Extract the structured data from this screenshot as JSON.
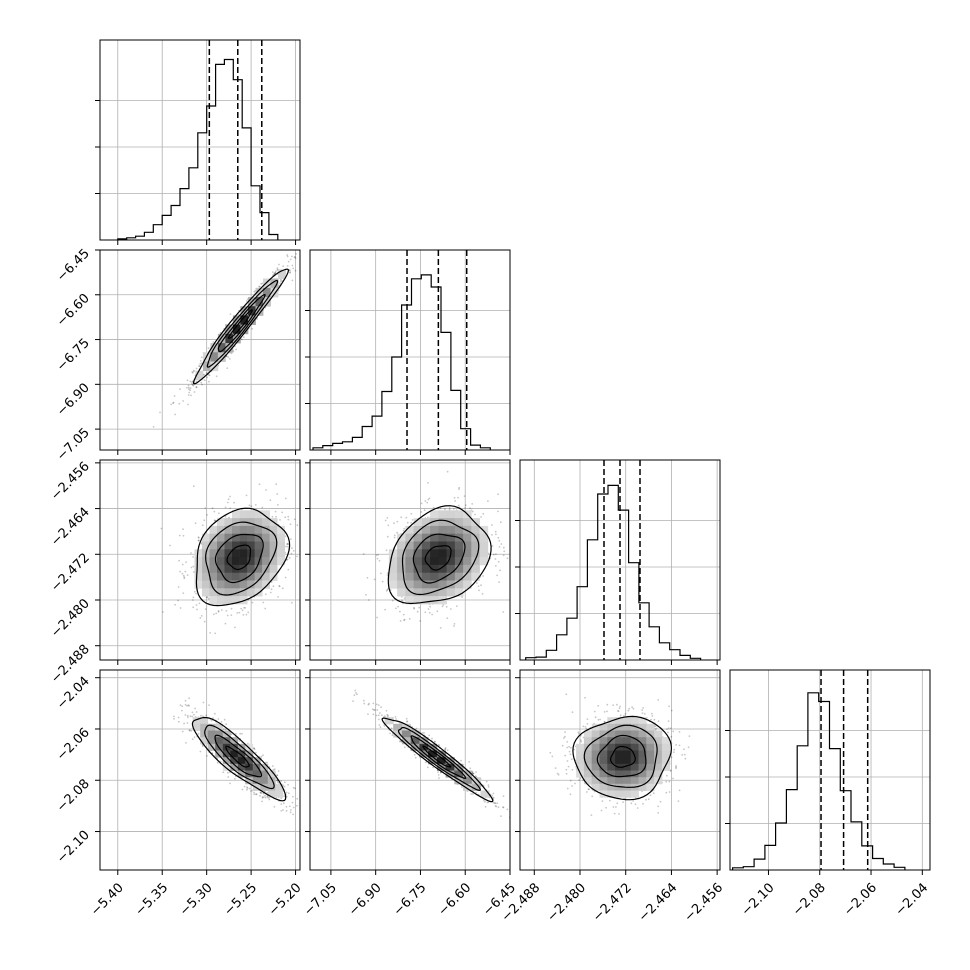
{
  "chart_data": {
    "type": "corner",
    "grid": true,
    "parameters": [
      {
        "range": [
          -5.42,
          -5.195
        ],
        "ticks": [
          -5.4,
          -5.35,
          -5.3,
          -5.25,
          -5.2
        ],
        "tick_labels": [
          "−5.40",
          "−5.35",
          "−5.30",
          "−5.25",
          "−5.20"
        ],
        "quantiles": [
          -5.297,
          -5.265,
          -5.238
        ],
        "histogram": {
          "bin_start": -5.4,
          "bin_width": 0.01,
          "counts": [
            2,
            4,
            7,
            14,
            28,
            45,
            63,
            94,
            132,
            196,
            245,
            321,
            330,
            293,
            205,
            99,
            50,
            10
          ]
        },
        "histogram_ymax": 340
      },
      {
        "range": [
          -7.12,
          -6.45
        ],
        "ticks": [
          -7.05,
          -6.9,
          -6.75,
          -6.6,
          -6.45
        ],
        "tick_labels": [
          "−7.05",
          "−6.90",
          "−6.75",
          "−6.60",
          "−6.45"
        ],
        "quantiles": [
          -6.795,
          -6.69,
          -6.595
        ],
        "histogram": {
          "bin_start": -7.11,
          "bin_width": 0.033,
          "counts": [
            4,
            8,
            12,
            15,
            23,
            43,
            62,
            107,
            170,
            265,
            313,
            320,
            298,
            215,
            109,
            39,
            9,
            4
          ]
        },
        "histogram_ymax": 340
      },
      {
        "range": [
          -2.4905,
          -2.4555
        ],
        "ticks": [
          -2.488,
          -2.48,
          -2.472,
          -2.464,
          -2.456
        ],
        "tick_labels": [
          "−2.488",
          "−2.480",
          "−2.472",
          "−2.464",
          "−2.456"
        ],
        "quantiles": [
          -2.4758,
          -2.473,
          -2.4695
        ],
        "histogram": {
          "bin_start": -2.4895,
          "bin_width": 0.0018,
          "counts": [
            4,
            5,
            17,
            44,
            73,
            128,
            210,
            290,
            305,
            262,
            170,
            100,
            58,
            30,
            18,
            8,
            3
          ]
        },
        "histogram_ymax": 325
      },
      {
        "range": [
          -2.115,
          -2.037
        ],
        "ticks": [
          -2.1,
          -2.08,
          -2.06,
          -2.04
        ],
        "tick_labels": [
          "−2.10",
          "−2.08",
          "−2.06",
          "−2.04"
        ],
        "quantiles": [
          -2.0795,
          -2.0707,
          -2.0613
        ],
        "histogram": {
          "bin_start": -2.114,
          "bin_width": 0.0042,
          "counts": [
            4,
            6,
            20,
            45,
            86,
            147,
            227,
            324,
            308,
            222,
            145,
            88,
            44,
            21,
            11,
            5
          ]
        },
        "histogram_ymax": 340
      }
    ],
    "pairs": [
      {
        "x": 0,
        "y": 1,
        "mean": [
          -5.262,
          -6.7
        ],
        "sd": [
          0.026,
          0.095
        ],
        "corr": 0.97
      },
      {
        "x": 0,
        "y": 2,
        "mean": [
          -5.263,
          -2.4725
        ],
        "sd": [
          0.026,
          0.0042
        ],
        "corr": 0.25
      },
      {
        "x": 1,
        "y": 2,
        "mean": [
          -6.69,
          -2.4725
        ],
        "sd": [
          0.085,
          0.0042
        ],
        "corr": 0.25
      },
      {
        "x": 0,
        "y": 3,
        "mean": [
          -5.265,
          -2.071
        ],
        "sd": [
          0.026,
          0.008
        ],
        "corr": -0.88
      },
      {
        "x": 1,
        "y": 3,
        "mean": [
          -6.695,
          -2.071
        ],
        "sd": [
          0.09,
          0.008
        ],
        "corr": -0.96
      },
      {
        "x": 2,
        "y": 3,
        "mean": [
          -2.4725,
          -2.071
        ],
        "sd": [
          0.0042,
          0.008
        ],
        "corr": 0.05
      }
    ],
    "contour_levels_sigma": [
      0.5,
      1.0,
      1.5,
      2.0
    ],
    "colors": {
      "line": "#000000",
      "grid": "#b0b0b0",
      "scatter": "#000000"
    }
  }
}
